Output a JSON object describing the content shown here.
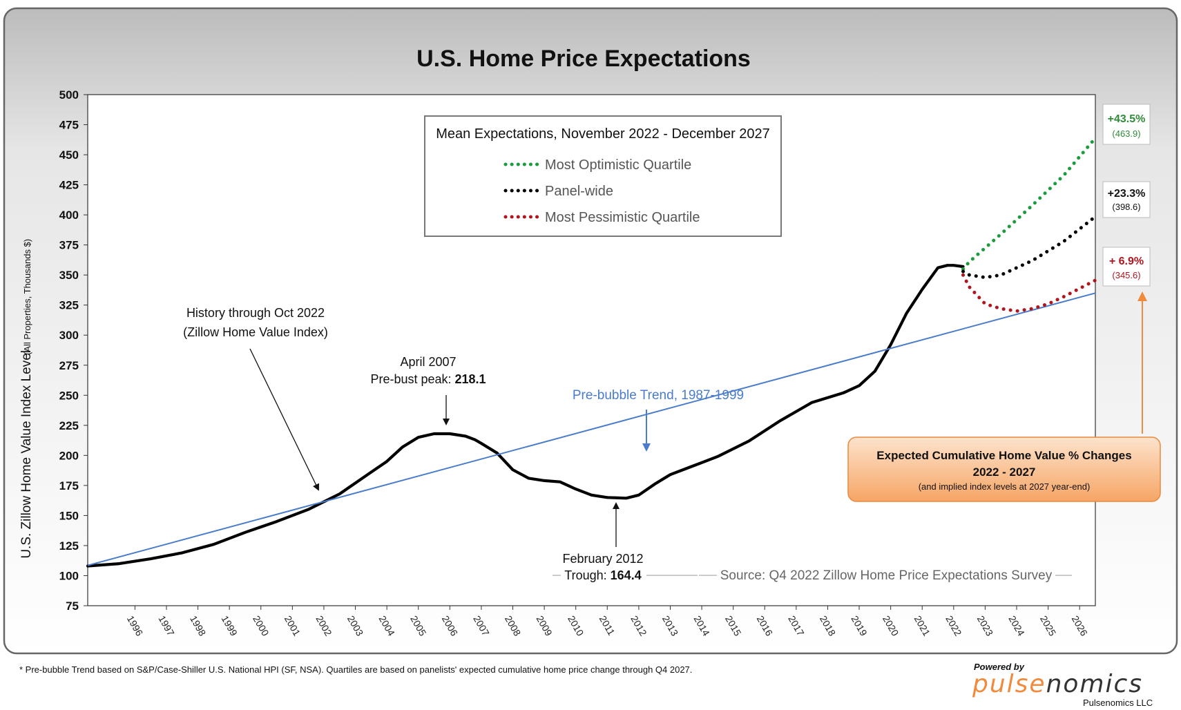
{
  "chart_data": {
    "type": "line",
    "title": "U.S. Home Price Expectations",
    "ylabel": "U.S. Zillow Home Value Index Level",
    "ylabel_sub": "(All Properties, Thousands $)",
    "ylim": [
      75,
      500
    ],
    "yticks": [
      "75",
      "100",
      "125",
      "150",
      "175",
      "200",
      "225",
      "250",
      "275",
      "300",
      "325",
      "350",
      "375",
      "400",
      "425",
      "450",
      "475",
      "500"
    ],
    "xticks": [
      "1996",
      "1997",
      "1998",
      "1999",
      "2000",
      "2001",
      "2002",
      "2003",
      "2004",
      "2005",
      "2006",
      "2007",
      "2008",
      "2009",
      "2010",
      "2011",
      "2012",
      "2013",
      "2014",
      "2015",
      "2016",
      "2017",
      "2018",
      "2019",
      "2020",
      "2021",
      "2022",
      "2023",
      "2024",
      "2025",
      "2026"
    ],
    "grid": false,
    "legend": {
      "title": "Mean Expectations, November 2022 - December 2027",
      "placement": "top-center",
      "entries": [
        "Most Optimistic Quartile",
        "Panel-wide",
        "Most Pessimistic Quartile"
      ]
    },
    "series": [
      {
        "name": "History through Oct 2022 (Zillow Home Value Index)",
        "style": "solid",
        "color": "#000000",
        "x": [
          1995.0,
          1996.0,
          1997.0,
          1998.0,
          1999.0,
          2000.0,
          2001.0,
          2002.0,
          2003.0,
          2004.0,
          2004.5,
          2005.0,
          2005.5,
          2006.0,
          2006.5,
          2007.0,
          2007.3,
          2007.5,
          2008.0,
          2008.5,
          2009.0,
          2009.5,
          2010.0,
          2010.5,
          2011.0,
          2011.5,
          2012.1,
          2012.5,
          2013.0,
          2013.5,
          2014.0,
          2015.0,
          2016.0,
          2017.0,
          2018.0,
          2019.0,
          2019.5,
          2020.0,
          2020.5,
          2021.0,
          2021.5,
          2022.0,
          2022.3,
          2022.5,
          2022.8
        ],
        "values": [
          108,
          110,
          114,
          119,
          126,
          136,
          145,
          155,
          168,
          186,
          195,
          207,
          215,
          218,
          218,
          216,
          213,
          210,
          202,
          188,
          181,
          179,
          178,
          172,
          167,
          165,
          164.4,
          167,
          176,
          184,
          189,
          199,
          212,
          229,
          244,
          252,
          258,
          270,
          292,
          318,
          338,
          356,
          358,
          358,
          357
        ]
      },
      {
        "name": "Pre-bubble Trend, 1987-1999",
        "style": "solid",
        "color": "#4a7cc9",
        "x": [
          1995.0,
          2027.0
        ],
        "values": [
          108.5,
          335
        ]
      },
      {
        "name": "Most Optimistic Quartile",
        "style": "dotted",
        "color": "#1a9b3c",
        "x": [
          2022.8,
          2023.0,
          2024.0,
          2025.0,
          2026.0,
          2027.0
        ],
        "values": [
          355,
          361,
          384,
          408,
          433,
          463.9
        ]
      },
      {
        "name": "Panel-wide",
        "style": "dotted",
        "color": "#000000",
        "x": [
          2022.8,
          2023.0,
          2023.5,
          2024.0,
          2024.5,
          2025.0,
          2026.0,
          2027.0
        ],
        "values": [
          353,
          350,
          348,
          350,
          356,
          362,
          378,
          398.6
        ]
      },
      {
        "name": "Most Pessimistic Quartile",
        "style": "dotted",
        "color": "#b0151d",
        "x": [
          2022.8,
          2023.0,
          2023.5,
          2024.0,
          2024.5,
          2025.0,
          2025.5,
          2026.0,
          2027.0
        ],
        "values": [
          350,
          340,
          326,
          322,
          320,
          322,
          326,
          332,
          345.6
        ]
      }
    ],
    "annotations": {
      "history_label": [
        "History through Oct 2022",
        "(Zillow Home Value Index)"
      ],
      "peak": {
        "line1": "April 2007",
        "line2_prefix": "Pre-bust peak: ",
        "line2_value": "218.1"
      },
      "trough": {
        "line1": "February 2012",
        "line2_prefix": "Trough: ",
        "line2_value": "164.4"
      },
      "trend_label": "Pre-bubble Trend, 1987-1999",
      "source": "Source: Q4 2022 Zillow Home Price Expectations Survey",
      "end_labels": [
        {
          "pct": "+43.5%",
          "level": "(463.9)",
          "color": "#2e8b3a"
        },
        {
          "pct": "+23.3%",
          "level": "(398.6)",
          "color": "#111111"
        },
        {
          "pct": "+ 6.9%",
          "level": "(345.6)",
          "color": "#b0151d"
        }
      ],
      "callout": {
        "line1": "Expected Cumulative Home Value % Changes",
        "line2": "2022 - 2027",
        "line3": "(and implied index levels at 2027 year-end)"
      }
    }
  },
  "footer": {
    "note": "* Pre-bubble Trend based on S&P/Case-Shiller U.S. National HPI (SF, NSA).  Quartiles are based on panelists' expected cumulative home price change through Q4 2027.",
    "powered_by": "Powered by",
    "logo_a": "pulse",
    "logo_b": "nomics",
    "company": "Pulsenomics LLC"
  }
}
